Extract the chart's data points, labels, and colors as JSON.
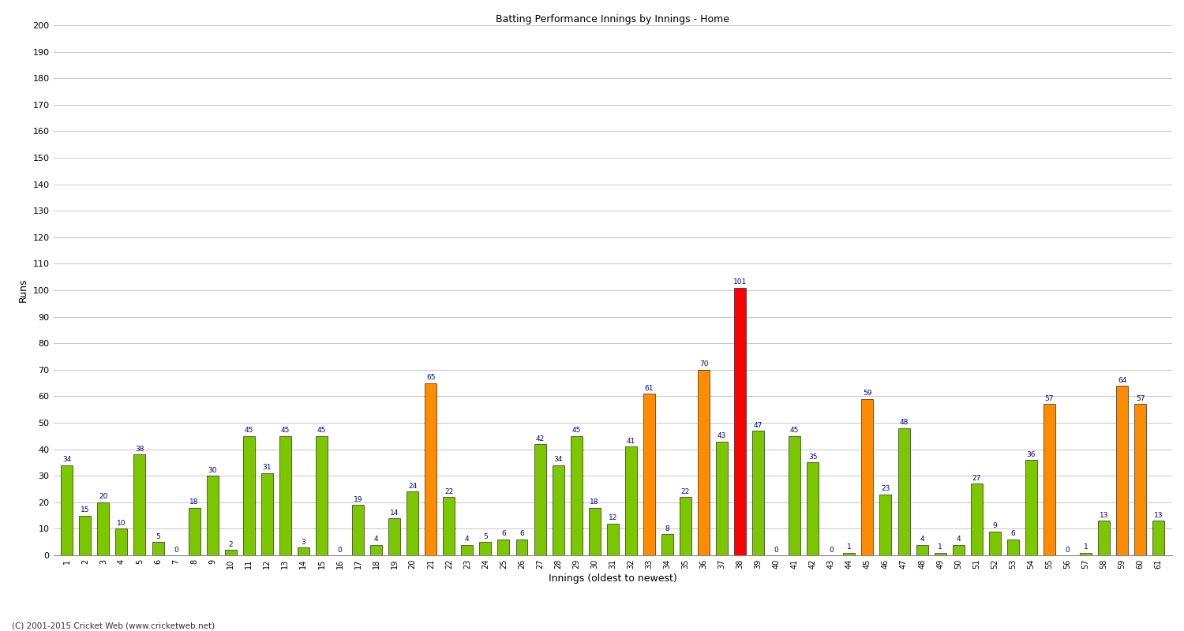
{
  "title": "Batting Performance Innings by Innings - Home",
  "xlabel": "Innings (oldest to newest)",
  "ylabel": "Runs",
  "ylim": [
    0,
    200
  ],
  "yticks": [
    0,
    10,
    20,
    30,
    40,
    50,
    60,
    70,
    80,
    90,
    100,
    110,
    120,
    130,
    140,
    150,
    160,
    170,
    180,
    190,
    200
  ],
  "values": [
    34,
    15,
    20,
    10,
    38,
    5,
    0,
    18,
    30,
    2,
    45,
    31,
    45,
    3,
    45,
    0,
    19,
    4,
    14,
    24,
    65,
    22,
    4,
    5,
    6,
    6,
    42,
    34,
    45,
    18,
    12,
    41,
    61,
    8,
    22,
    70,
    43,
    101,
    47,
    0,
    45,
    35,
    0,
    1,
    59,
    23,
    48,
    4,
    1,
    4,
    27,
    9,
    6,
    36,
    57,
    0,
    1,
    13,
    64,
    57,
    13
  ],
  "colors": [
    "#7dc700",
    "#7dc700",
    "#7dc700",
    "#7dc700",
    "#7dc700",
    "#7dc700",
    "#7dc700",
    "#7dc700",
    "#7dc700",
    "#7dc700",
    "#7dc700",
    "#7dc700",
    "#7dc700",
    "#7dc700",
    "#7dc700",
    "#7dc700",
    "#7dc700",
    "#7dc700",
    "#7dc700",
    "#7dc700",
    "#ff8c00",
    "#7dc700",
    "#7dc700",
    "#7dc700",
    "#7dc700",
    "#7dc700",
    "#7dc700",
    "#7dc700",
    "#7dc700",
    "#7dc700",
    "#7dc700",
    "#7dc700",
    "#ff8c00",
    "#7dc700",
    "#7dc700",
    "#ff8c00",
    "#7dc700",
    "#ff0000",
    "#7dc700",
    "#7dc700",
    "#7dc700",
    "#7dc700",
    "#7dc700",
    "#7dc700",
    "#ff8c00",
    "#7dc700",
    "#7dc700",
    "#7dc700",
    "#7dc700",
    "#7dc700",
    "#7dc700",
    "#7dc700",
    "#7dc700",
    "#7dc700",
    "#ff8c00",
    "#7dc700",
    "#7dc700",
    "#7dc700",
    "#ff8c00",
    "#ff8c00",
    "#7dc700"
  ],
  "xtick_labels": [
    "1",
    "2",
    "3",
    "4",
    "5",
    "6",
    "7",
    "8",
    "9",
    "10",
    "11",
    "12",
    "13",
    "14",
    "15",
    "16",
    "17",
    "18",
    "19",
    "20",
    "21",
    "22",
    "23",
    "24",
    "25",
    "26",
    "27",
    "28",
    "29",
    "30",
    "31",
    "32",
    "33",
    "34",
    "35",
    "36",
    "37",
    "38",
    "39",
    "40",
    "41",
    "42",
    "43",
    "44",
    "45",
    "46",
    "47",
    "48",
    "49",
    "50",
    "51",
    "52",
    "53",
    "54",
    "55",
    "56",
    "57",
    "58",
    "59",
    "60",
    "61"
  ],
  "background_color": "#ffffff",
  "grid_color": "#c8c8c8",
  "bar_edge_color": "#000000",
  "value_label_color": "#00008b",
  "footer": "(C) 2001-2015 Cricket Web (www.cricketweb.net)"
}
